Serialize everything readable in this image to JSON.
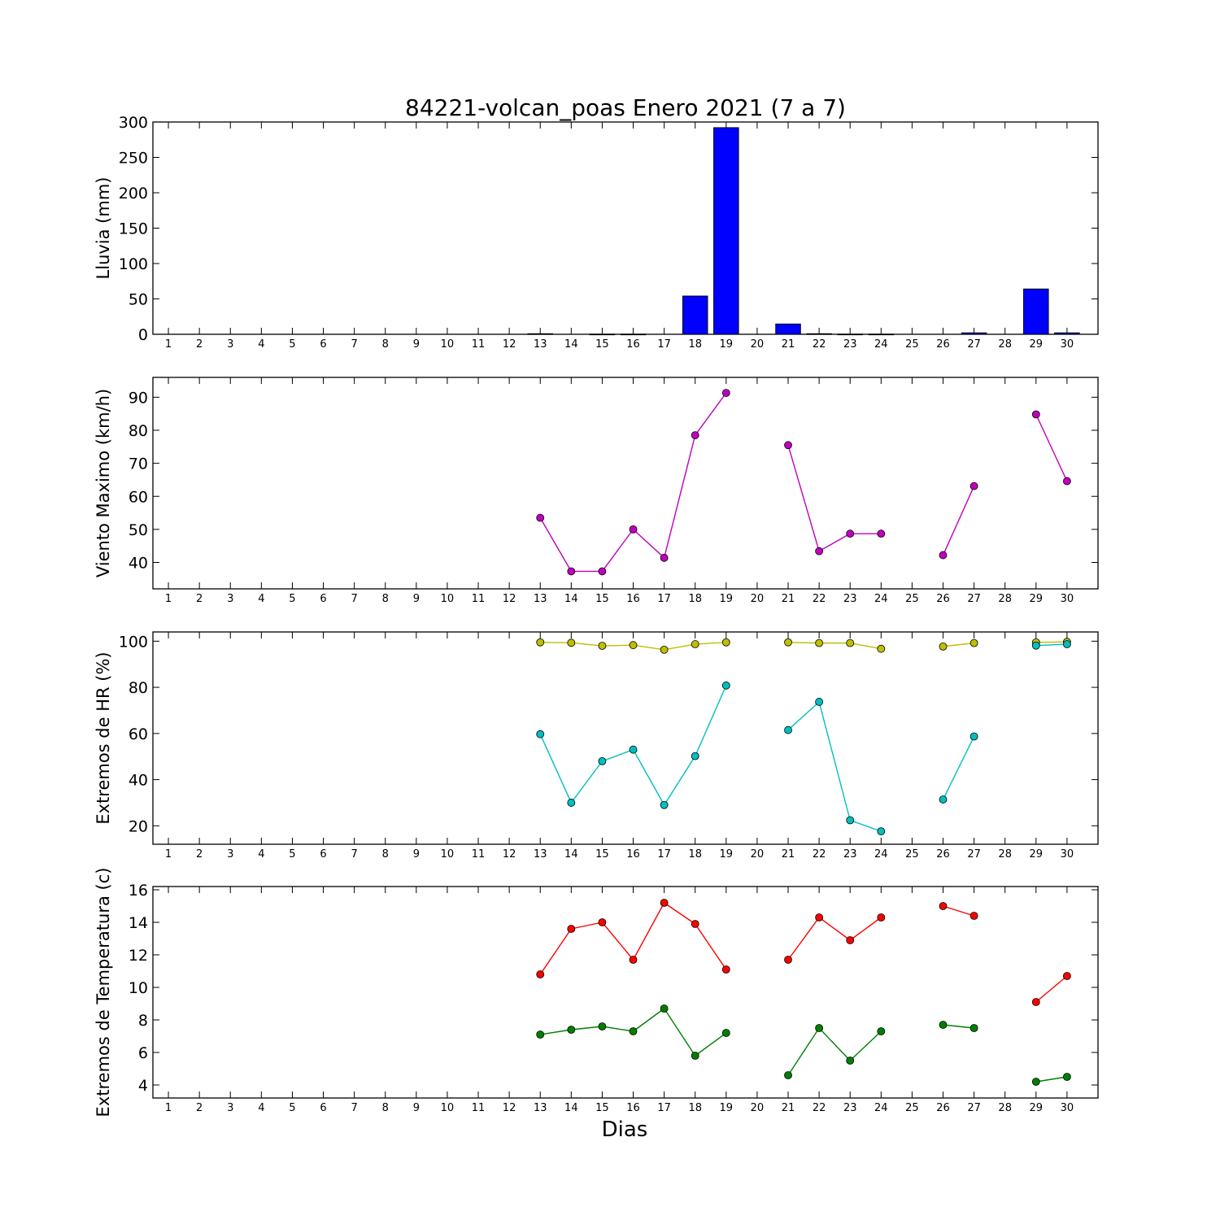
{
  "chart_data": [
    {
      "type": "bar",
      "title": "84221-volcan_poas Enero 2021  (7 a 7)",
      "ylabel": "Lluvia (mm)",
      "xlabel": "",
      "x": [
        1,
        2,
        3,
        4,
        5,
        6,
        7,
        8,
        9,
        10,
        11,
        12,
        13,
        14,
        15,
        16,
        17,
        18,
        19,
        20,
        21,
        22,
        23,
        24,
        25,
        26,
        27,
        28,
        29,
        30
      ],
      "ylim": [
        0,
        300
      ],
      "yticks": [
        0,
        50,
        100,
        150,
        200,
        250,
        300
      ],
      "grid": false,
      "series": [
        {
          "color": "#0000ff",
          "values": [
            0,
            0,
            0,
            0,
            0,
            0,
            0,
            0,
            0,
            0,
            0,
            0,
            0.8,
            0,
            0.2,
            0.2,
            0,
            54,
            292,
            0,
            14.5,
            0.8,
            0.2,
            0.2,
            0,
            0,
            2,
            0,
            64,
            2
          ]
        }
      ]
    },
    {
      "type": "line",
      "title": "",
      "ylabel": "Viento Maximo (km/h)",
      "xlabel": "",
      "x": [
        1,
        2,
        3,
        4,
        5,
        6,
        7,
        8,
        9,
        10,
        11,
        12,
        13,
        14,
        15,
        16,
        17,
        18,
        19,
        20,
        21,
        22,
        23,
        24,
        25,
        26,
        27,
        28,
        29,
        30
      ],
      "ylim": [
        32,
        96
      ],
      "yticks": [
        40,
        50,
        60,
        70,
        80,
        90
      ],
      "grid": false,
      "series": [
        {
          "color": "#bf00bf",
          "values": [
            null,
            null,
            null,
            null,
            null,
            null,
            null,
            null,
            null,
            null,
            null,
            null,
            53.5,
            37.3,
            37.3,
            50,
            41.4,
            78.5,
            91.3,
            null,
            75.5,
            43.4,
            48.7,
            48.7,
            null,
            42.2,
            63.1,
            null,
            84.8,
            64.6
          ]
        }
      ]
    },
    {
      "type": "line",
      "title": "",
      "ylabel": "Extremos de HR (%)",
      "xlabel": "",
      "x": [
        1,
        2,
        3,
        4,
        5,
        6,
        7,
        8,
        9,
        10,
        11,
        12,
        13,
        14,
        15,
        16,
        17,
        18,
        19,
        20,
        21,
        22,
        23,
        24,
        25,
        26,
        27,
        28,
        29,
        30
      ],
      "ylim": [
        12,
        104
      ],
      "yticks": [
        20,
        40,
        60,
        80,
        100
      ],
      "grid": false,
      "series": [
        {
          "color": "#bfbf00",
          "values": [
            null,
            null,
            null,
            null,
            null,
            null,
            null,
            null,
            null,
            null,
            null,
            null,
            99.5,
            99.3,
            98,
            98.3,
            96.3,
            98.7,
            99.5,
            null,
            99.5,
            99.2,
            99.2,
            96.7,
            null,
            97.7,
            99.2,
            null,
            99.5,
            99.7
          ]
        },
        {
          "color": "#00bfbf",
          "values": [
            null,
            null,
            null,
            null,
            null,
            null,
            null,
            null,
            null,
            null,
            null,
            null,
            59.7,
            30,
            48,
            53,
            29,
            50.2,
            80.8,
            null,
            61.5,
            73.7,
            22.4,
            17.6,
            null,
            31.4,
            58.7,
            null,
            98.1,
            98.7
          ]
        }
      ]
    },
    {
      "type": "line",
      "title": "",
      "ylabel": "Extremos de Temperatura (c)",
      "xlabel": "Dias",
      "x": [
        1,
        2,
        3,
        4,
        5,
        6,
        7,
        8,
        9,
        10,
        11,
        12,
        13,
        14,
        15,
        16,
        17,
        18,
        19,
        20,
        21,
        22,
        23,
        24,
        25,
        26,
        27,
        28,
        29,
        30
      ],
      "ylim": [
        3.2,
        16.2
      ],
      "yticks": [
        4,
        6,
        8,
        10,
        12,
        14,
        16
      ],
      "grid": false,
      "series": [
        {
          "color": "#ff0000",
          "values": [
            null,
            null,
            null,
            null,
            null,
            null,
            null,
            null,
            null,
            null,
            null,
            null,
            10.8,
            13.6,
            14,
            11.7,
            15.2,
            13.9,
            11.1,
            null,
            11.7,
            14.3,
            12.9,
            14.3,
            null,
            15,
            14.4,
            null,
            9.1,
            10.7
          ]
        },
        {
          "color": "#007f00",
          "values": [
            null,
            null,
            null,
            null,
            null,
            null,
            null,
            null,
            null,
            null,
            null,
            null,
            7.1,
            7.4,
            7.6,
            7.3,
            8.7,
            5.8,
            7.2,
            null,
            4.6,
            7.5,
            5.5,
            7.3,
            null,
            7.7,
            7.5,
            null,
            4.2,
            4.5
          ]
        }
      ]
    }
  ]
}
